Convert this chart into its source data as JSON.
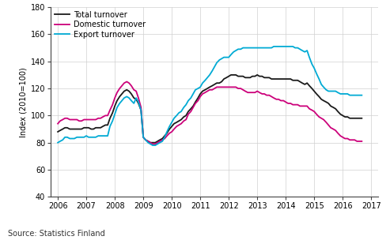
{
  "ylabel": "Index (2010=100)",
  "source": "Source: Statistics Finland",
  "ylim": [
    40,
    180
  ],
  "yticks": [
    40,
    60,
    80,
    100,
    120,
    140,
    160,
    180
  ],
  "xlim": [
    2005.75,
    2017.25
  ],
  "xticks": [
    2006,
    2007,
    2008,
    2009,
    2010,
    2011,
    2012,
    2013,
    2014,
    2015,
    2016,
    2017
  ],
  "line_colors": {
    "total": "#1a1a1a",
    "domestic": "#cc007a",
    "export": "#00aad4"
  },
  "legend_labels": [
    "Total turnover",
    "Domestic turnover",
    "Export turnover"
  ],
  "total": [
    [
      2006.0,
      88
    ],
    [
      2006.08,
      89
    ],
    [
      2006.17,
      90
    ],
    [
      2006.25,
      91
    ],
    [
      2006.33,
      91
    ],
    [
      2006.42,
      90
    ],
    [
      2006.5,
      90
    ],
    [
      2006.58,
      90
    ],
    [
      2006.67,
      90
    ],
    [
      2006.75,
      90
    ],
    [
      2006.83,
      90
    ],
    [
      2006.92,
      91
    ],
    [
      2007.0,
      91
    ],
    [
      2007.08,
      91
    ],
    [
      2007.17,
      90
    ],
    [
      2007.25,
      90
    ],
    [
      2007.33,
      91
    ],
    [
      2007.42,
      91
    ],
    [
      2007.5,
      91
    ],
    [
      2007.58,
      92
    ],
    [
      2007.67,
      93
    ],
    [
      2007.75,
      93
    ],
    [
      2007.83,
      98
    ],
    [
      2007.92,
      102
    ],
    [
      2008.0,
      107
    ],
    [
      2008.08,
      111
    ],
    [
      2008.17,
      114
    ],
    [
      2008.25,
      116
    ],
    [
      2008.33,
      118
    ],
    [
      2008.42,
      119
    ],
    [
      2008.5,
      118
    ],
    [
      2008.58,
      116
    ],
    [
      2008.67,
      113
    ],
    [
      2008.75,
      112
    ],
    [
      2008.83,
      109
    ],
    [
      2008.92,
      104
    ],
    [
      2009.0,
      84
    ],
    [
      2009.08,
      82
    ],
    [
      2009.17,
      81
    ],
    [
      2009.25,
      80
    ],
    [
      2009.33,
      80
    ],
    [
      2009.42,
      80
    ],
    [
      2009.5,
      81
    ],
    [
      2009.58,
      82
    ],
    [
      2009.67,
      83
    ],
    [
      2009.75,
      85
    ],
    [
      2009.83,
      87
    ],
    [
      2009.92,
      90
    ],
    [
      2010.0,
      92
    ],
    [
      2010.08,
      94
    ],
    [
      2010.17,
      95
    ],
    [
      2010.25,
      96
    ],
    [
      2010.33,
      97
    ],
    [
      2010.42,
      99
    ],
    [
      2010.5,
      100
    ],
    [
      2010.58,
      103
    ],
    [
      2010.67,
      105
    ],
    [
      2010.75,
      107
    ],
    [
      2010.83,
      110
    ],
    [
      2010.92,
      113
    ],
    [
      2011.0,
      116
    ],
    [
      2011.08,
      118
    ],
    [
      2011.17,
      119
    ],
    [
      2011.25,
      120
    ],
    [
      2011.33,
      121
    ],
    [
      2011.42,
      122
    ],
    [
      2011.5,
      123
    ],
    [
      2011.58,
      124
    ],
    [
      2011.67,
      124
    ],
    [
      2011.75,
      125
    ],
    [
      2011.83,
      127
    ],
    [
      2011.92,
      128
    ],
    [
      2012.0,
      129
    ],
    [
      2012.08,
      130
    ],
    [
      2012.17,
      130
    ],
    [
      2012.25,
      130
    ],
    [
      2012.33,
      129
    ],
    [
      2012.42,
      129
    ],
    [
      2012.5,
      129
    ],
    [
      2012.58,
      128
    ],
    [
      2012.67,
      128
    ],
    [
      2012.75,
      128
    ],
    [
      2012.83,
      129
    ],
    [
      2012.92,
      129
    ],
    [
      2013.0,
      130
    ],
    [
      2013.08,
      129
    ],
    [
      2013.17,
      129
    ],
    [
      2013.25,
      128
    ],
    [
      2013.33,
      128
    ],
    [
      2013.42,
      128
    ],
    [
      2013.5,
      127
    ],
    [
      2013.58,
      127
    ],
    [
      2013.67,
      127
    ],
    [
      2013.75,
      127
    ],
    [
      2013.83,
      127
    ],
    [
      2013.92,
      127
    ],
    [
      2014.0,
      127
    ],
    [
      2014.08,
      127
    ],
    [
      2014.17,
      127
    ],
    [
      2014.25,
      126
    ],
    [
      2014.33,
      126
    ],
    [
      2014.42,
      126
    ],
    [
      2014.5,
      125
    ],
    [
      2014.58,
      124
    ],
    [
      2014.67,
      123
    ],
    [
      2014.75,
      124
    ],
    [
      2014.83,
      122
    ],
    [
      2014.92,
      120
    ],
    [
      2015.0,
      118
    ],
    [
      2015.08,
      116
    ],
    [
      2015.17,
      114
    ],
    [
      2015.25,
      112
    ],
    [
      2015.33,
      111
    ],
    [
      2015.42,
      110
    ],
    [
      2015.5,
      109
    ],
    [
      2015.58,
      107
    ],
    [
      2015.67,
      106
    ],
    [
      2015.75,
      105
    ],
    [
      2015.83,
      103
    ],
    [
      2015.92,
      101
    ],
    [
      2016.0,
      100
    ],
    [
      2016.08,
      99
    ],
    [
      2016.17,
      99
    ],
    [
      2016.25,
      98
    ],
    [
      2016.33,
      98
    ],
    [
      2016.42,
      98
    ],
    [
      2016.5,
      98
    ],
    [
      2016.58,
      98
    ],
    [
      2016.67,
      98
    ]
  ],
  "domestic": [
    [
      2006.0,
      94
    ],
    [
      2006.08,
      96
    ],
    [
      2006.17,
      97
    ],
    [
      2006.25,
      98
    ],
    [
      2006.33,
      98
    ],
    [
      2006.42,
      97
    ],
    [
      2006.5,
      97
    ],
    [
      2006.58,
      97
    ],
    [
      2006.67,
      97
    ],
    [
      2006.75,
      96
    ],
    [
      2006.83,
      96
    ],
    [
      2006.92,
      97
    ],
    [
      2007.0,
      97
    ],
    [
      2007.08,
      97
    ],
    [
      2007.17,
      97
    ],
    [
      2007.25,
      97
    ],
    [
      2007.33,
      97
    ],
    [
      2007.42,
      98
    ],
    [
      2007.5,
      98
    ],
    [
      2007.58,
      99
    ],
    [
      2007.67,
      100
    ],
    [
      2007.75,
      100
    ],
    [
      2007.83,
      104
    ],
    [
      2007.92,
      108
    ],
    [
      2008.0,
      113
    ],
    [
      2008.08,
      117
    ],
    [
      2008.17,
      120
    ],
    [
      2008.25,
      122
    ],
    [
      2008.33,
      124
    ],
    [
      2008.42,
      125
    ],
    [
      2008.5,
      124
    ],
    [
      2008.58,
      122
    ],
    [
      2008.67,
      119
    ],
    [
      2008.75,
      118
    ],
    [
      2008.83,
      113
    ],
    [
      2008.92,
      106
    ],
    [
      2009.0,
      84
    ],
    [
      2009.08,
      82
    ],
    [
      2009.17,
      81
    ],
    [
      2009.25,
      80
    ],
    [
      2009.33,
      79
    ],
    [
      2009.42,
      79
    ],
    [
      2009.5,
      80
    ],
    [
      2009.58,
      81
    ],
    [
      2009.67,
      82
    ],
    [
      2009.75,
      83
    ],
    [
      2009.83,
      85
    ],
    [
      2009.92,
      87
    ],
    [
      2010.0,
      88
    ],
    [
      2010.08,
      90
    ],
    [
      2010.17,
      92
    ],
    [
      2010.25,
      93
    ],
    [
      2010.33,
      94
    ],
    [
      2010.42,
      96
    ],
    [
      2010.5,
      97
    ],
    [
      2010.58,
      101
    ],
    [
      2010.67,
      103
    ],
    [
      2010.75,
      106
    ],
    [
      2010.83,
      109
    ],
    [
      2010.92,
      111
    ],
    [
      2011.0,
      114
    ],
    [
      2011.08,
      116
    ],
    [
      2011.17,
      117
    ],
    [
      2011.25,
      118
    ],
    [
      2011.33,
      119
    ],
    [
      2011.42,
      119
    ],
    [
      2011.5,
      120
    ],
    [
      2011.58,
      121
    ],
    [
      2011.67,
      121
    ],
    [
      2011.75,
      121
    ],
    [
      2011.83,
      121
    ],
    [
      2011.92,
      121
    ],
    [
      2012.0,
      121
    ],
    [
      2012.08,
      121
    ],
    [
      2012.17,
      121
    ],
    [
      2012.25,
      121
    ],
    [
      2012.33,
      120
    ],
    [
      2012.42,
      120
    ],
    [
      2012.5,
      119
    ],
    [
      2012.58,
      118
    ],
    [
      2012.67,
      117
    ],
    [
      2012.75,
      117
    ],
    [
      2012.83,
      117
    ],
    [
      2012.92,
      117
    ],
    [
      2013.0,
      118
    ],
    [
      2013.08,
      117
    ],
    [
      2013.17,
      116
    ],
    [
      2013.25,
      116
    ],
    [
      2013.33,
      115
    ],
    [
      2013.42,
      115
    ],
    [
      2013.5,
      114
    ],
    [
      2013.58,
      113
    ],
    [
      2013.67,
      112
    ],
    [
      2013.75,
      112
    ],
    [
      2013.83,
      111
    ],
    [
      2013.92,
      111
    ],
    [
      2014.0,
      110
    ],
    [
      2014.08,
      109
    ],
    [
      2014.17,
      109
    ],
    [
      2014.25,
      108
    ],
    [
      2014.33,
      108
    ],
    [
      2014.42,
      108
    ],
    [
      2014.5,
      107
    ],
    [
      2014.58,
      107
    ],
    [
      2014.67,
      107
    ],
    [
      2014.75,
      107
    ],
    [
      2014.83,
      105
    ],
    [
      2014.92,
      104
    ],
    [
      2015.0,
      103
    ],
    [
      2015.08,
      101
    ],
    [
      2015.17,
      99
    ],
    [
      2015.25,
      98
    ],
    [
      2015.33,
      97
    ],
    [
      2015.42,
      95
    ],
    [
      2015.5,
      93
    ],
    [
      2015.58,
      91
    ],
    [
      2015.67,
      90
    ],
    [
      2015.75,
      89
    ],
    [
      2015.83,
      87
    ],
    [
      2015.92,
      85
    ],
    [
      2016.0,
      84
    ],
    [
      2016.08,
      83
    ],
    [
      2016.17,
      83
    ],
    [
      2016.25,
      82
    ],
    [
      2016.33,
      82
    ],
    [
      2016.42,
      82
    ],
    [
      2016.5,
      81
    ],
    [
      2016.58,
      81
    ],
    [
      2016.67,
      81
    ]
  ],
  "export": [
    [
      2006.0,
      80
    ],
    [
      2006.08,
      81
    ],
    [
      2006.17,
      82
    ],
    [
      2006.25,
      84
    ],
    [
      2006.33,
      84
    ],
    [
      2006.42,
      83
    ],
    [
      2006.5,
      83
    ],
    [
      2006.58,
      83
    ],
    [
      2006.67,
      84
    ],
    [
      2006.75,
      84
    ],
    [
      2006.83,
      84
    ],
    [
      2006.92,
      84
    ],
    [
      2007.0,
      85
    ],
    [
      2007.08,
      84
    ],
    [
      2007.17,
      84
    ],
    [
      2007.25,
      84
    ],
    [
      2007.33,
      84
    ],
    [
      2007.42,
      85
    ],
    [
      2007.5,
      85
    ],
    [
      2007.58,
      85
    ],
    [
      2007.67,
      85
    ],
    [
      2007.75,
      85
    ],
    [
      2007.83,
      92
    ],
    [
      2007.92,
      96
    ],
    [
      2008.0,
      101
    ],
    [
      2008.08,
      106
    ],
    [
      2008.17,
      109
    ],
    [
      2008.25,
      111
    ],
    [
      2008.33,
      113
    ],
    [
      2008.42,
      114
    ],
    [
      2008.5,
      113
    ],
    [
      2008.58,
      111
    ],
    [
      2008.67,
      109
    ],
    [
      2008.75,
      113
    ],
    [
      2008.83,
      110
    ],
    [
      2008.92,
      104
    ],
    [
      2009.0,
      84
    ],
    [
      2009.08,
      82
    ],
    [
      2009.17,
      80
    ],
    [
      2009.25,
      79
    ],
    [
      2009.33,
      78
    ],
    [
      2009.42,
      78
    ],
    [
      2009.5,
      79
    ],
    [
      2009.58,
      80
    ],
    [
      2009.67,
      81
    ],
    [
      2009.75,
      84
    ],
    [
      2009.83,
      88
    ],
    [
      2009.92,
      92
    ],
    [
      2010.0,
      95
    ],
    [
      2010.08,
      98
    ],
    [
      2010.17,
      100
    ],
    [
      2010.25,
      102
    ],
    [
      2010.33,
      103
    ],
    [
      2010.42,
      106
    ],
    [
      2010.5,
      108
    ],
    [
      2010.58,
      111
    ],
    [
      2010.67,
      113
    ],
    [
      2010.75,
      116
    ],
    [
      2010.83,
      119
    ],
    [
      2010.92,
      120
    ],
    [
      2011.0,
      121
    ],
    [
      2011.08,
      124
    ],
    [
      2011.17,
      126
    ],
    [
      2011.25,
      128
    ],
    [
      2011.33,
      130
    ],
    [
      2011.42,
      133
    ],
    [
      2011.5,
      136
    ],
    [
      2011.58,
      139
    ],
    [
      2011.67,
      141
    ],
    [
      2011.75,
      142
    ],
    [
      2011.83,
      143
    ],
    [
      2011.92,
      143
    ],
    [
      2012.0,
      143
    ],
    [
      2012.08,
      145
    ],
    [
      2012.17,
      147
    ],
    [
      2012.25,
      148
    ],
    [
      2012.33,
      149
    ],
    [
      2012.42,
      149
    ],
    [
      2012.5,
      150
    ],
    [
      2012.58,
      150
    ],
    [
      2012.67,
      150
    ],
    [
      2012.75,
      150
    ],
    [
      2012.83,
      150
    ],
    [
      2012.92,
      150
    ],
    [
      2013.0,
      150
    ],
    [
      2013.08,
      150
    ],
    [
      2013.17,
      150
    ],
    [
      2013.25,
      150
    ],
    [
      2013.33,
      150
    ],
    [
      2013.42,
      150
    ],
    [
      2013.5,
      150
    ],
    [
      2013.58,
      151
    ],
    [
      2013.67,
      151
    ],
    [
      2013.75,
      151
    ],
    [
      2013.83,
      151
    ],
    [
      2013.92,
      151
    ],
    [
      2014.0,
      151
    ],
    [
      2014.08,
      151
    ],
    [
      2014.17,
      151
    ],
    [
      2014.25,
      151
    ],
    [
      2014.33,
      150
    ],
    [
      2014.42,
      150
    ],
    [
      2014.5,
      149
    ],
    [
      2014.58,
      148
    ],
    [
      2014.67,
      147
    ],
    [
      2014.75,
      148
    ],
    [
      2014.83,
      143
    ],
    [
      2014.92,
      138
    ],
    [
      2015.0,
      135
    ],
    [
      2015.08,
      131
    ],
    [
      2015.17,
      127
    ],
    [
      2015.25,
      123
    ],
    [
      2015.33,
      121
    ],
    [
      2015.42,
      119
    ],
    [
      2015.5,
      118
    ],
    [
      2015.58,
      118
    ],
    [
      2015.67,
      118
    ],
    [
      2015.75,
      118
    ],
    [
      2015.83,
      117
    ],
    [
      2015.92,
      116
    ],
    [
      2016.0,
      116
    ],
    [
      2016.08,
      116
    ],
    [
      2016.17,
      116
    ],
    [
      2016.25,
      115
    ],
    [
      2016.33,
      115
    ],
    [
      2016.42,
      115
    ],
    [
      2016.5,
      115
    ],
    [
      2016.58,
      115
    ],
    [
      2016.67,
      115
    ]
  ]
}
